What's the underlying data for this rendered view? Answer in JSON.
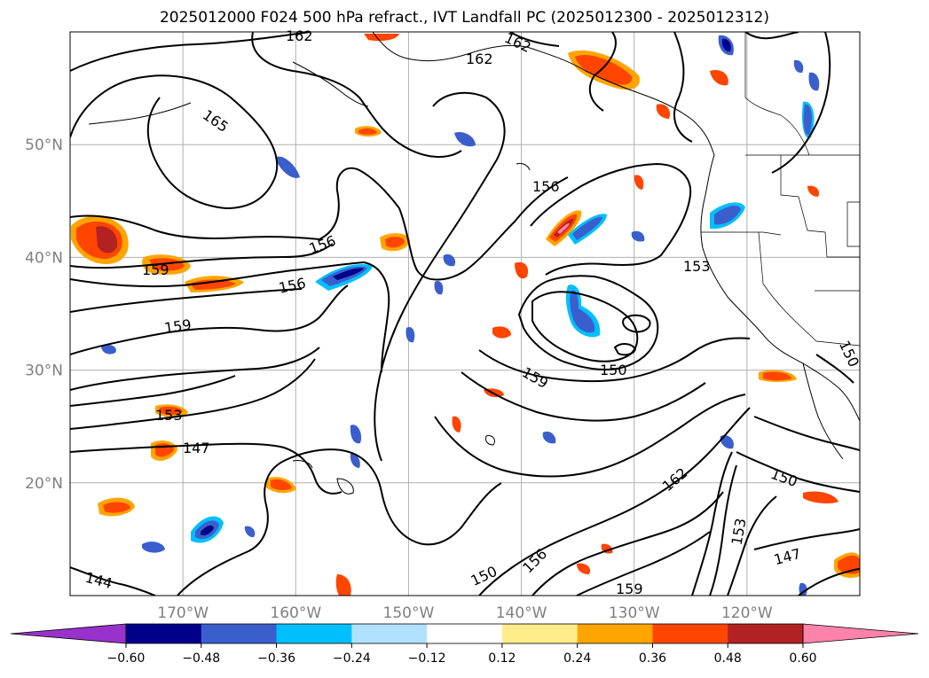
{
  "title": "2025012000 F024 500 hPa refract., IVT Landfall PC (2025012300 - 2025012312)",
  "lat_labels": [
    "50°N",
    "40°N",
    "30°N",
    "20°N"
  ],
  "lat_values": [
    50,
    40,
    30,
    20
  ],
  "lon_labels": [
    "170°W",
    "160°W",
    "150°W",
    "140°W",
    "130°W",
    "120°W"
  ],
  "lon_values": [
    -170,
    -160,
    -150,
    -140,
    -130,
    -120
  ],
  "map_extent": {
    "lon_min": -180,
    "lon_max": -110,
    "lat_min": 10,
    "lat_max": 60
  },
  "contour_labels": [
    "162",
    "162",
    "162",
    "165",
    "156",
    "156",
    "156",
    "159",
    "159",
    "153",
    "150",
    "159",
    "153",
    "147",
    "162",
    "150",
    "150",
    "156",
    "153",
    "159",
    "147",
    "144",
    "150"
  ],
  "colorbar": {
    "colors": [
      "#9932cc",
      "#00008b",
      "#3a5fcd",
      "#00bfff",
      "#b0e2ff",
      "#ffffff",
      "#ffec8b",
      "#ffa500",
      "#ff4500",
      "#b22222",
      "#ff82ab"
    ],
    "ticks": [
      "−0.60",
      "−0.48",
      "−0.36",
      "−0.24",
      "−0.12",
      "0.12",
      "0.24",
      "0.36",
      "0.48",
      "0.60"
    ],
    "tick_values": [
      -0.6,
      -0.48,
      -0.36,
      -0.24,
      -0.12,
      0.12,
      0.24,
      0.36,
      0.48,
      0.6
    ]
  },
  "field_colors": {
    "neg_outer": "#b0e2ff",
    "neg_mid": "#00bfff",
    "neg_strong": "#3a5fcd",
    "neg_max": "#00008b",
    "pos_outer": "#ffec8b",
    "pos_mid": "#ffa500",
    "pos_strong": "#ff4500",
    "pos_max": "#b22222",
    "pos_peak": "#ff82ab"
  }
}
